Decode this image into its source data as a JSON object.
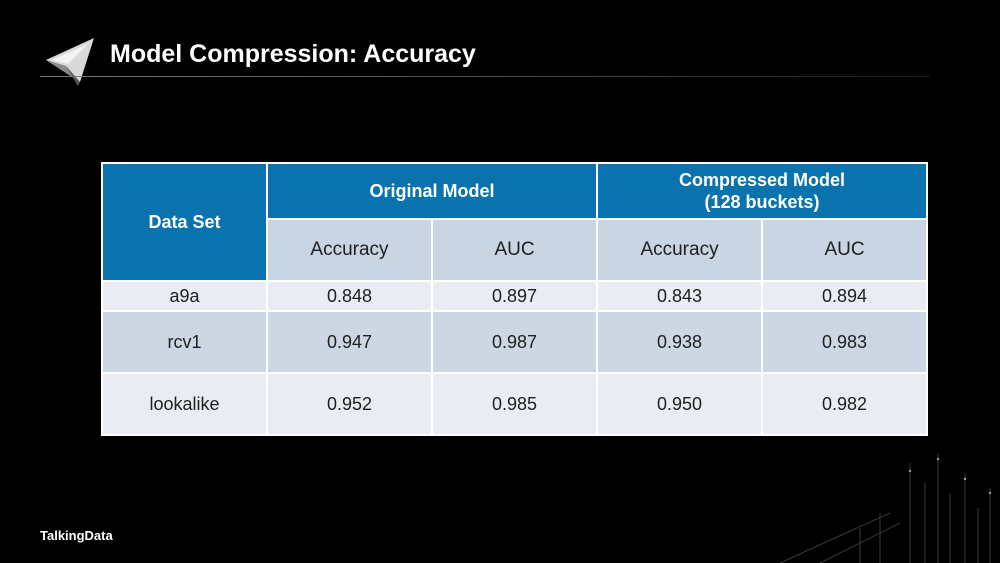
{
  "slide": {
    "title": "Model Compression: Accuracy",
    "brand": "TalkingData"
  },
  "colors": {
    "background": "#000000",
    "header_blue": "#0a73ad",
    "subheader_gray": "#c9d5e2",
    "row_light": "#e9edf3",
    "row_dark": "#ccd7e3",
    "title_text": "#ffffff"
  },
  "icons": {
    "logo": "paper-plane-logo-icon",
    "decoration": "data-streams-decoration"
  },
  "table": {
    "dataset_header": "Data Set",
    "group_original": "Original Model",
    "group_compressed_line1": "Compressed Model",
    "group_compressed_line2": "(128 buckets)",
    "sub_headers": [
      "Accuracy",
      "AUC",
      "Accuracy",
      "AUC"
    ],
    "rows": [
      {
        "dataset": "a9a",
        "orig_acc": "0.848",
        "orig_auc": "0.897",
        "comp_acc": "0.843",
        "comp_auc": "0.894"
      },
      {
        "dataset": "rcv1",
        "orig_acc": "0.947",
        "orig_auc": "0.987",
        "comp_acc": "0.938",
        "comp_auc": "0.983"
      },
      {
        "dataset": "lookalike",
        "orig_acc": "0.952",
        "orig_auc": "0.985",
        "comp_acc": "0.950",
        "comp_auc": "0.982"
      }
    ]
  }
}
